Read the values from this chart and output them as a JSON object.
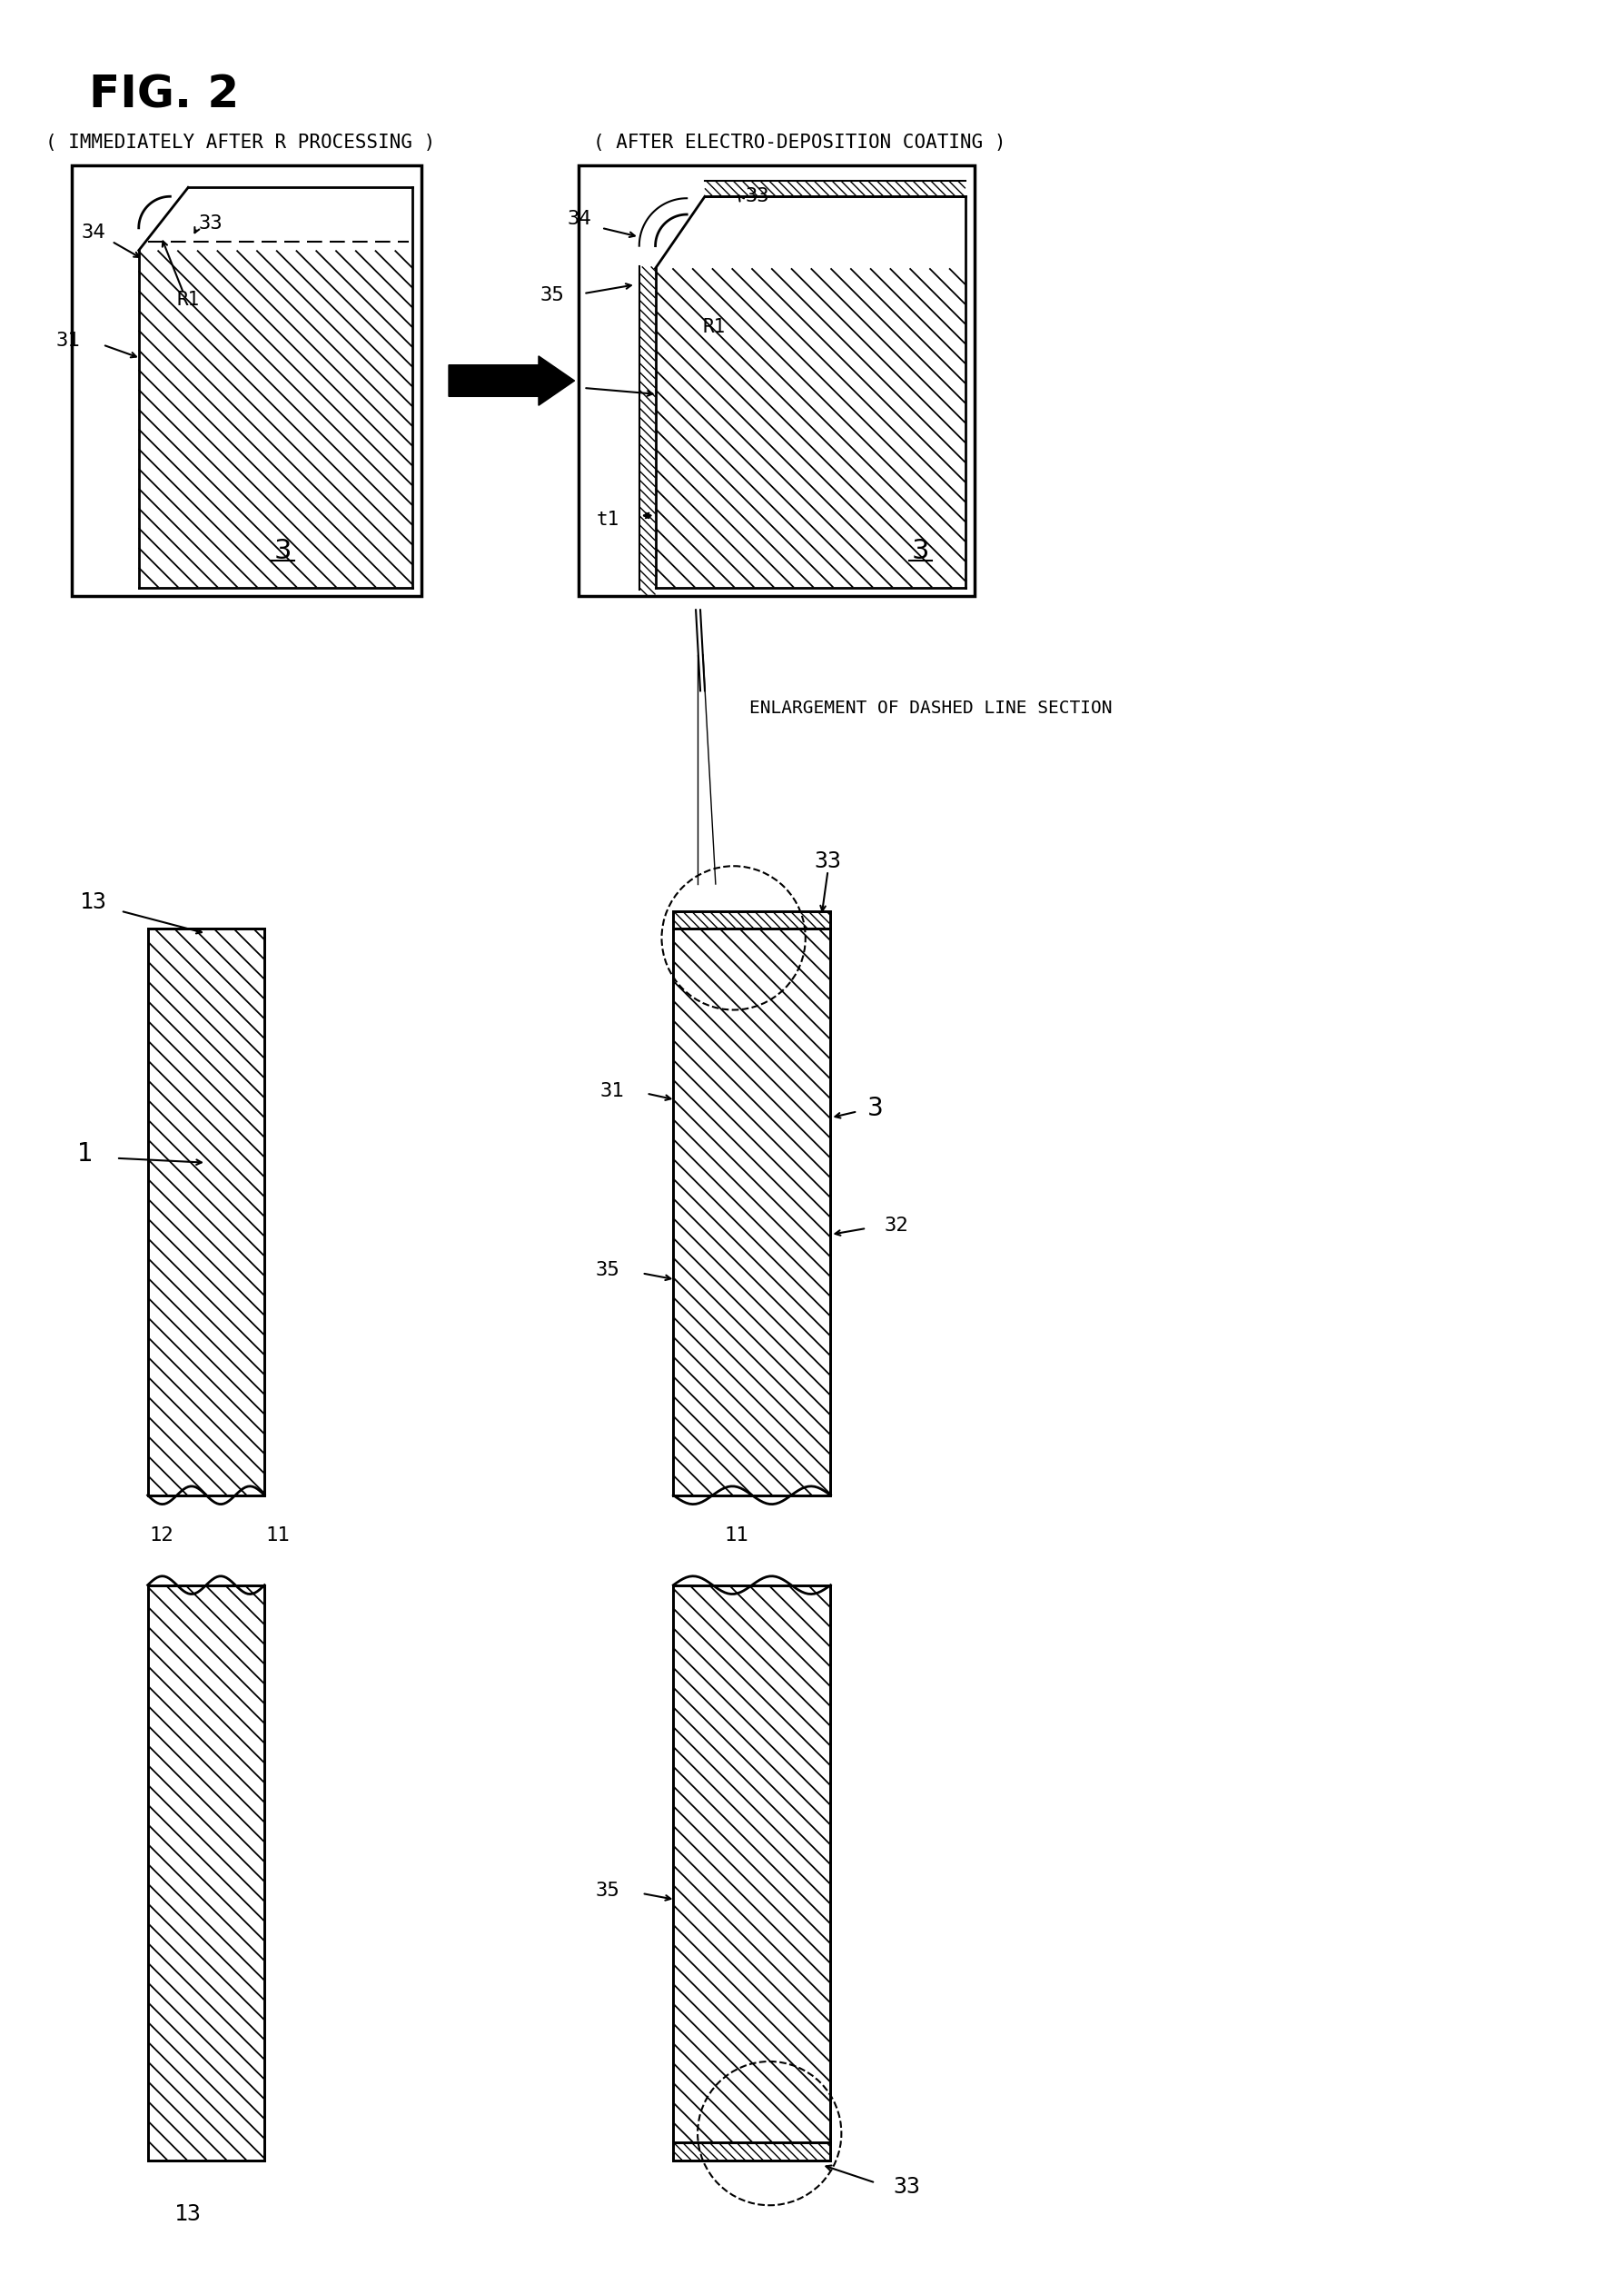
{
  "title": "FIG. 2",
  "label1": "( IMMEDIATELY AFTER R PROCESSING )",
  "label2": "( AFTER ELECTRO-DEPOSITION COATING )",
  "enlarge_text": "ENLARGEMENT OF DASHED LINE SECTION",
  "background": "#ffffff",
  "line_color": "#000000",
  "hatch_color": "#000000",
  "fig_width": 17.88,
  "fig_height": 25.04
}
